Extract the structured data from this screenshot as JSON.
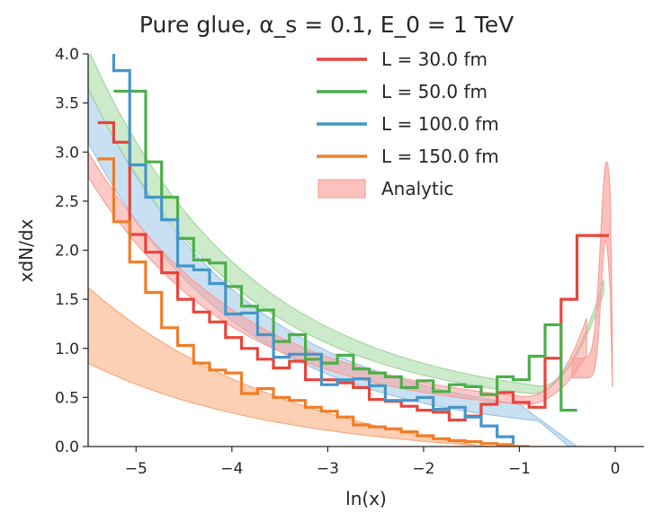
{
  "chart_data": {
    "type": "line",
    "title": "Pure glue, α_s = 0.1, E_0 = 1 TeV",
    "xlabel": "ln(x)",
    "ylabel": "xdN/dx",
    "xlim": [
      -5.5,
      0.3
    ],
    "ylim": [
      0,
      4.0
    ],
    "xticks": [
      -5,
      -4,
      -3,
      -2,
      -1,
      0
    ],
    "xtick_labels": [
      "−5",
      "−4",
      "−3",
      "−2",
      "−1",
      "0"
    ],
    "yticks": [
      0,
      0.5,
      1.0,
      1.5,
      2.0,
      2.5,
      3.0,
      3.5,
      4.0
    ],
    "ytick_labels": [
      "0.0",
      "0.5",
      "1.0",
      "1.5",
      "2.0",
      "2.5",
      "3.0",
      "3.5",
      "4.0"
    ],
    "grid": false,
    "legend_position": "top-right",
    "bin_edges": [
      -5.4,
      -5.233,
      -5.067,
      -4.9,
      -4.733,
      -4.567,
      -4.4,
      -4.233,
      -4.067,
      -3.9,
      -3.733,
      -3.567,
      -3.4,
      -3.233,
      -3.067,
      -2.9,
      -2.733,
      -2.567,
      -2.4,
      -2.233,
      -2.067,
      -1.9,
      -1.733,
      -1.567,
      -1.4,
      -1.233,
      -1.067,
      -0.9,
      -0.733,
      -0.567,
      -0.4,
      -0.233,
      -0.067
    ],
    "series": [
      {
        "name": "L = 30.0 fm",
        "color": "#e8453c",
        "values": [
          3.3,
          3.1,
          2.16,
          1.98,
          1.77,
          1.5,
          1.37,
          1.27,
          1.11,
          1.0,
          0.89,
          0.8,
          0.87,
          0.68,
          0.68,
          0.65,
          0.6,
          0.48,
          0.46,
          0.41,
          0.37,
          0.35,
          0.27,
          0.31,
          0.43,
          0.55,
          0.45,
          0.4,
          0.9,
          1.5,
          2.15,
          2.15
        ],
        "end_index": 31
      },
      {
        "name": "L = 50.0 fm",
        "color": "#4daf4a",
        "values": [
          3.62,
          3.62,
          2.9,
          2.54,
          2.12,
          1.9,
          1.87,
          1.63,
          1.43,
          1.39,
          1.07,
          1.14,
          0.89,
          0.85,
          0.93,
          0.79,
          0.75,
          0.71,
          0.6,
          0.67,
          0.56,
          0.63,
          0.61,
          0.53,
          0.71,
          0.68,
          0.92,
          1.24,
          0.37
        ],
        "start_index": 0,
        "edge_offset": 1
      },
      {
        "name": "L = 100.0 fm",
        "color": "#4596c9",
        "values": [
          3.83,
          2.87,
          2.54,
          2.31,
          1.84,
          1.8,
          1.66,
          1.35,
          1.36,
          1.14,
          0.91,
          0.94,
          0.94,
          0.63,
          0.68,
          0.69,
          0.62,
          0.47,
          0.47,
          0.5,
          0.38,
          0.4,
          0.3,
          0.21,
          0.1,
          0.0
        ],
        "peak": 4.0
      },
      {
        "name": "L = 150.0 fm",
        "color": "#f07e28",
        "values": [
          2.93,
          2.29,
          1.88,
          1.57,
          1.21,
          1.03,
          0.85,
          0.78,
          0.75,
          0.54,
          0.59,
          0.5,
          0.47,
          0.4,
          0.36,
          0.3,
          0.22,
          0.2,
          0.18,
          0.15,
          0.11,
          0.08,
          0.06,
          0.05,
          0.03,
          0.02,
          0.0
        ]
      }
    ],
    "band_label": "Analytic",
    "band_color": "#f9a09a"
  }
}
